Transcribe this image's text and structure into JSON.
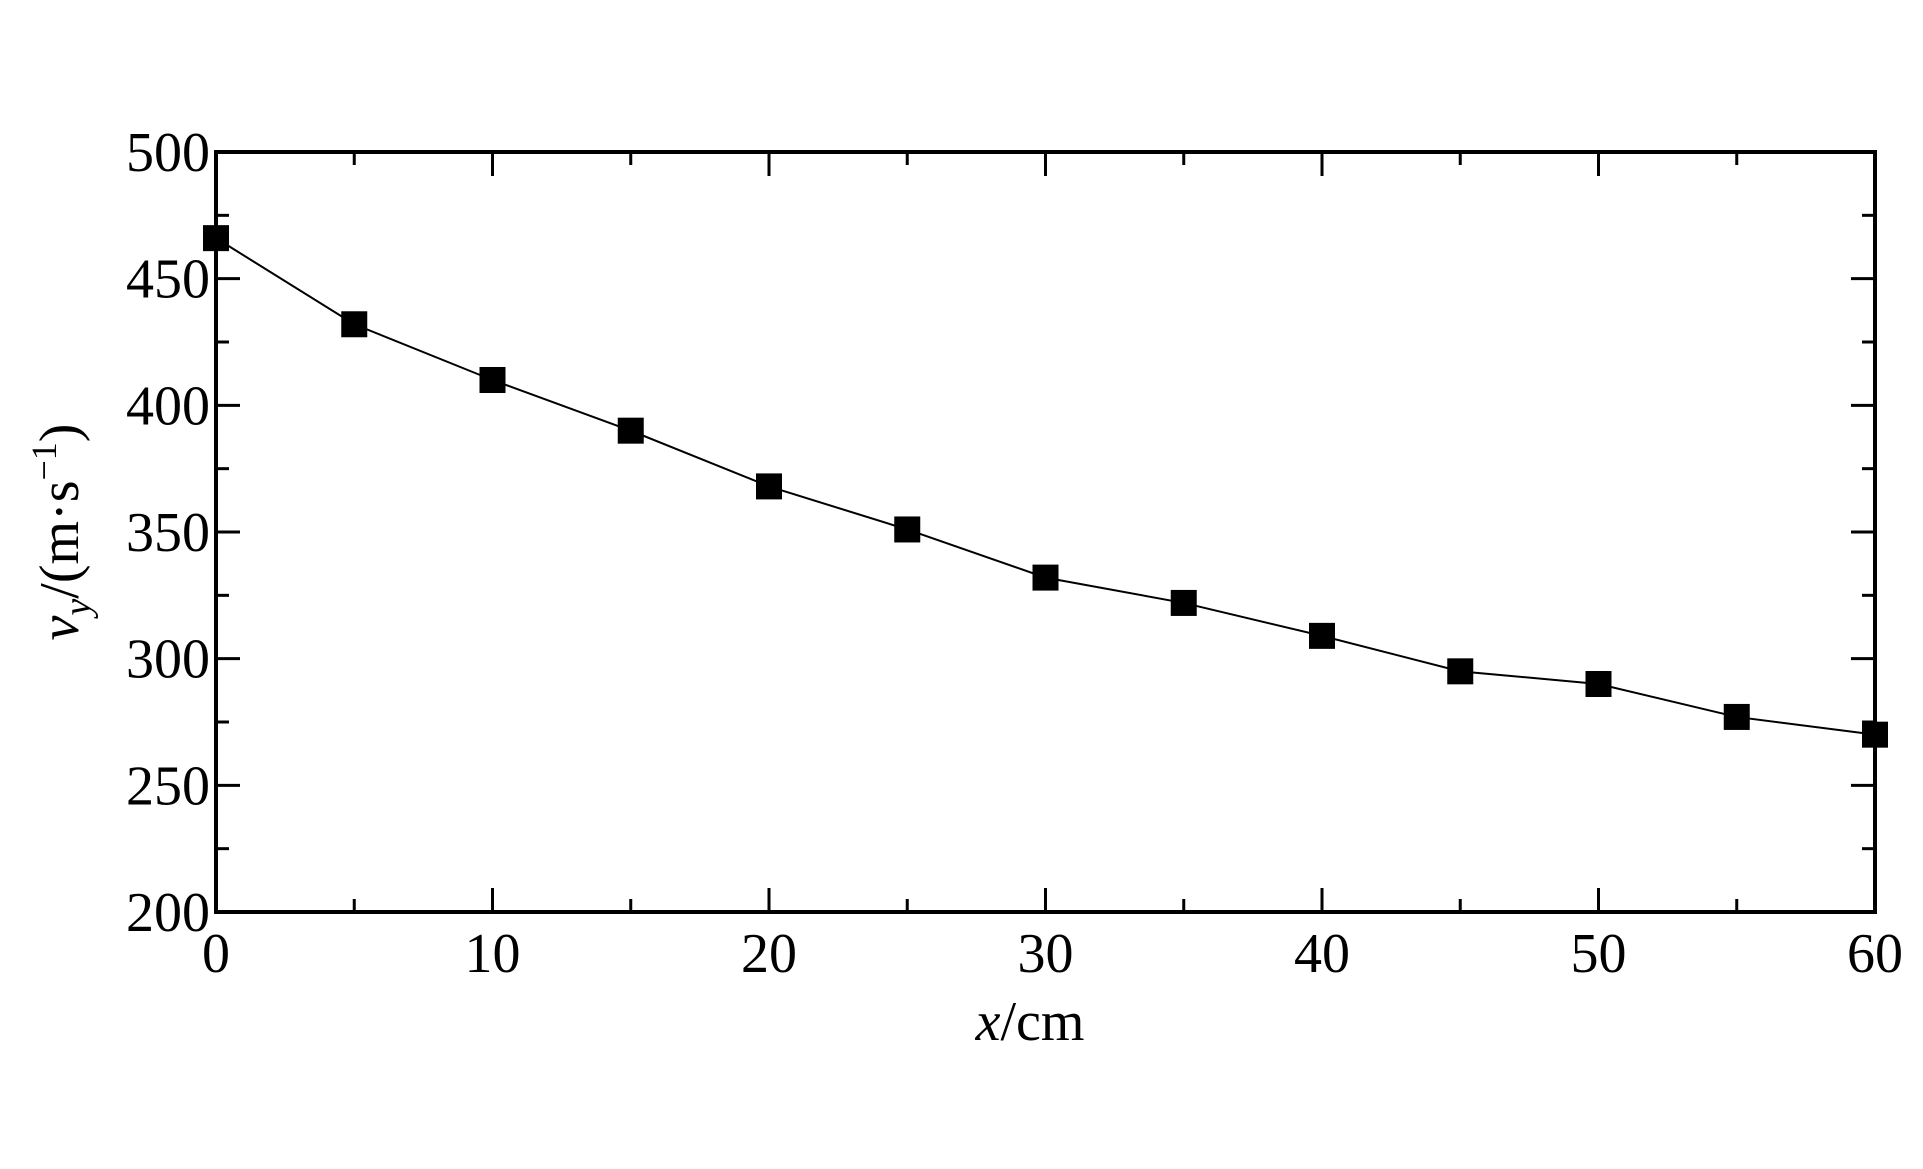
{
  "chart_data": {
    "type": "line",
    "xlabel": [
      "x",
      "/cm"
    ],
    "ylabel": [
      "v",
      "y",
      "/(m·s",
      "−1",
      ")"
    ],
    "x": [
      0,
      5,
      10,
      15,
      20,
      25,
      30,
      35,
      40,
      45,
      50,
      55,
      60
    ],
    "series": [
      {
        "color": "#000000",
        "values": [
          466,
          432,
          410,
          390,
          368,
          351,
          332,
          322,
          309,
          295,
          290,
          277,
          270
        ]
      }
    ],
    "xlim": [
      0,
      60
    ],
    "xticks": [
      0,
      10,
      20,
      30,
      40,
      50,
      60
    ],
    "ylim": [
      200,
      500
    ],
    "yticks": [
      200,
      250,
      300,
      350,
      400,
      450,
      500
    ],
    "grid": false
  }
}
